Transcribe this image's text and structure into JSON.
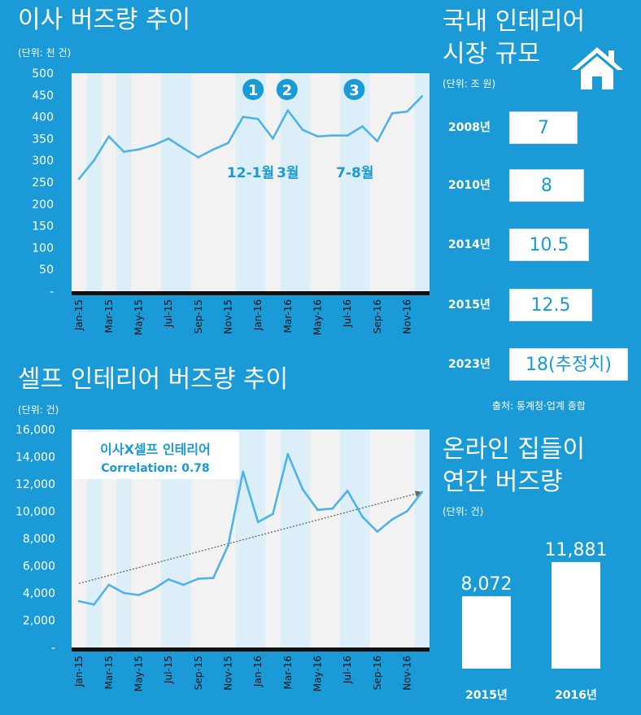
{
  "moving_chart": {
    "title": "이사 버즈량 추이",
    "unit": "(단위: 천 건)",
    "highlights": [
      {
        "marker": "1",
        "label": "12-1월"
      },
      {
        "marker": "2",
        "label": "3월"
      },
      {
        "marker": "3",
        "label": "7-8월"
      }
    ]
  },
  "self_chart": {
    "title": "셀프 인테리어 버즈량 추이",
    "unit": "(단위: 건)",
    "correlation_title": "이사X셀프 인테리어",
    "correlation_value": "Correlation: 0.78"
  },
  "market": {
    "title_line1": "국내 인테리어",
    "title_line2": "시장 규모",
    "unit": "(단위: 조 원)",
    "icon": "house-icon",
    "source": "출처: 통계청·업계 종합"
  },
  "online": {
    "title_line1": "온라인 집들이",
    "title_line2": "연간 버즈량",
    "unit": "(단위: 건)"
  },
  "colors": {
    "background": "#1a9ad6",
    "line": "#4fb3e6",
    "band": "#dceef8",
    "plot": "#f2f2f2",
    "accent": "#1a9ad6"
  },
  "chart_data": [
    {
      "type": "line",
      "title": "이사 버즈량 추이",
      "categories": [
        "Jan-15",
        "Feb-15",
        "Mar-15",
        "Apr-15",
        "May-15",
        "Jun-15",
        "Jul-15",
        "Aug-15",
        "Sep-15",
        "Oct-15",
        "Nov-15",
        "Dec-15",
        "Jan-16",
        "Feb-16",
        "Mar-16",
        "Apr-16",
        "May-16",
        "Jun-16",
        "Jul-16",
        "Aug-16",
        "Sep-16",
        "Oct-16",
        "Nov-16",
        "Dec-16"
      ],
      "x_tick_labels": [
        "Jan-15",
        "Mar-15",
        "May-15",
        "Jul-15",
        "Sep-15",
        "Nov-15",
        "Jan-16",
        "Mar-16",
        "May-16",
        "Jul-16",
        "Sep-16",
        "Nov-16"
      ],
      "values": [
        258,
        300,
        355,
        320,
        325,
        335,
        350,
        328,
        307,
        325,
        340,
        400,
        395,
        350,
        415,
        370,
        355,
        357,
        357,
        378,
        344,
        408,
        412,
        447
      ],
      "y_tick_labels": [
        "-",
        "50",
        "100",
        "150",
        "200",
        "250",
        "300",
        "350",
        "400",
        "450",
        "500"
      ],
      "ylim": [
        0,
        500
      ],
      "highlight_months": [
        "Feb-15",
        "Apr-15",
        "Jul-15",
        "Aug-15",
        "Dec-15",
        "Jan-16",
        "Mar-16",
        "Apr-16",
        "Jul-16",
        "Aug-16",
        "Dec-16"
      ]
    },
    {
      "type": "line",
      "title": "셀프 인테리어 버즈량 추이",
      "categories": [
        "Jan-15",
        "Feb-15",
        "Mar-15",
        "Apr-15",
        "May-15",
        "Jun-15",
        "Jul-15",
        "Aug-15",
        "Sep-15",
        "Oct-15",
        "Nov-15",
        "Dec-15",
        "Jan-16",
        "Feb-16",
        "Mar-16",
        "Apr-16",
        "May-16",
        "Jun-16",
        "Jul-16",
        "Aug-16",
        "Sep-16",
        "Oct-16",
        "Nov-16",
        "Dec-16"
      ],
      "x_tick_labels": [
        "Jan-15",
        "Mar-15",
        "May-15",
        "Jul-15",
        "Sep-15",
        "Nov-15",
        "Jan-16",
        "Mar-16",
        "May-16",
        "Jul-16",
        "Sep-16",
        "Nov-16"
      ],
      "values": [
        3400,
        3150,
        4600,
        4000,
        3850,
        4300,
        5000,
        4600,
        5050,
        5100,
        7500,
        12900,
        9200,
        9800,
        14200,
        11600,
        10100,
        10200,
        11500,
        9600,
        8500,
        9400,
        10000,
        11400
      ],
      "y_tick_labels": [
        "-",
        "2,000",
        "4,000",
        "6,000",
        "8,000",
        "10,000",
        "12,000",
        "14,000",
        "16,000"
      ],
      "ylim": [
        0,
        16000
      ],
      "trend": {
        "start": 4700,
        "end": 11400
      },
      "highlight_months": [
        "Feb-15",
        "Apr-15",
        "Jul-15",
        "Aug-15",
        "Dec-15",
        "Jan-16",
        "Mar-16",
        "Apr-16",
        "Jul-16",
        "Aug-16",
        "Dec-16"
      ]
    },
    {
      "type": "table",
      "title": "국내 인테리어 시장 규모",
      "rows": [
        {
          "year": "2008년",
          "value": "7"
        },
        {
          "year": "2010년",
          "value": "8"
        },
        {
          "year": "2014년",
          "value": "10.5"
        },
        {
          "year": "2015년",
          "value": "12.5"
        },
        {
          "year": "2023년",
          "value": "18(추정치)"
        }
      ]
    },
    {
      "type": "bar",
      "title": "온라인 집들이 연간 버즈량",
      "categories": [
        "2015년",
        "2016년"
      ],
      "values": [
        8072,
        11881
      ],
      "value_labels": [
        "8,072",
        "11,881"
      ],
      "ylim": [
        0,
        16500
      ]
    }
  ]
}
